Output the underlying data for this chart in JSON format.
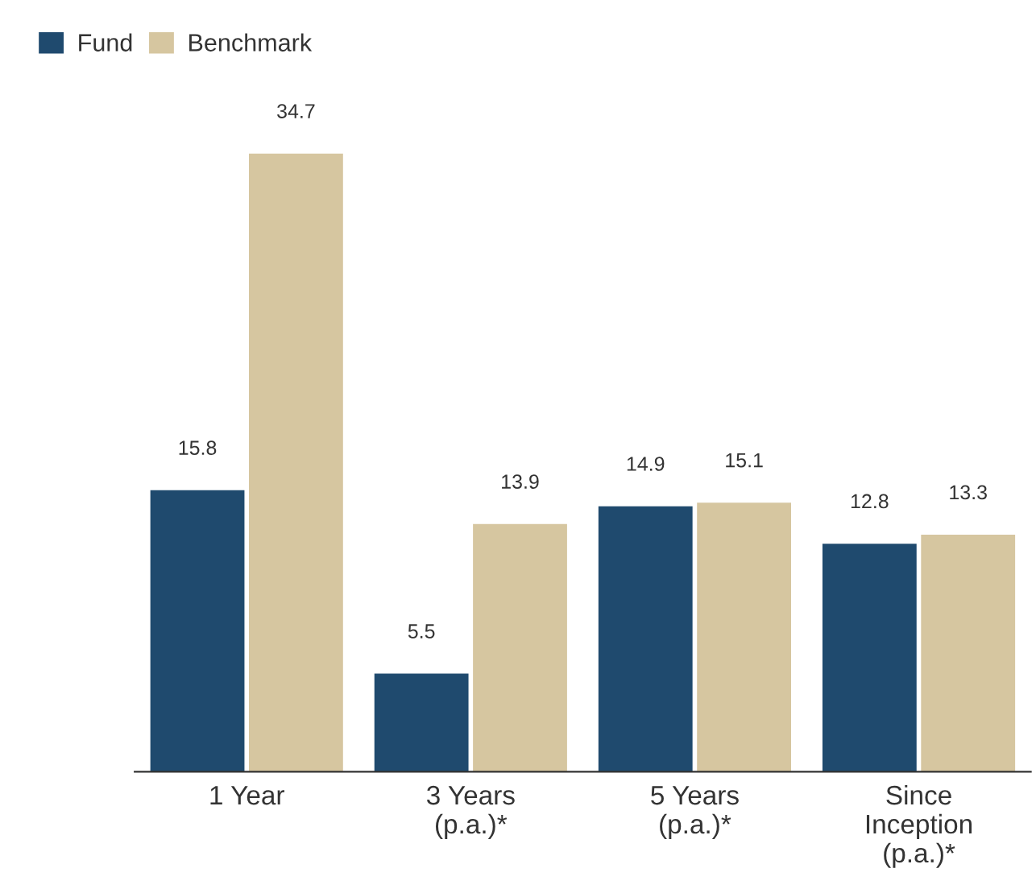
{
  "chart_data": {
    "type": "bar",
    "categories": [
      "1 Year",
      "3 Years\n(p.a.)*",
      "5 Years\n(p.a.)*",
      "Since\nInception\n(p.a.)*"
    ],
    "series": [
      {
        "name": "Fund",
        "color": "#1f4a6e",
        "values": [
          15.8,
          5.5,
          14.9,
          12.8
        ]
      },
      {
        "name": "Benchmark",
        "color": "#d6c6a0",
        "values": [
          34.7,
          13.9,
          15.1,
          13.3
        ]
      }
    ],
    "data_labels": true,
    "legend": "top left",
    "grid": false
  }
}
